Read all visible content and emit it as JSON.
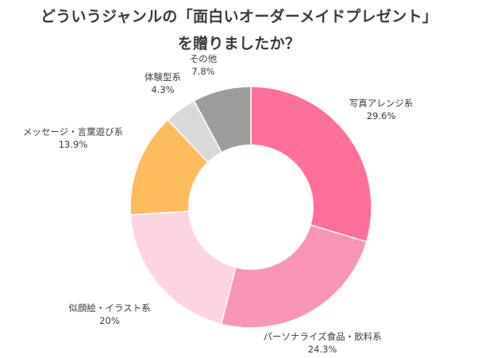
{
  "title": {
    "line1": "どういうジャンルの「面白いオーダーメイドプレゼント」",
    "line2": "を贈りましたか？"
  },
  "chart_data": {
    "type": "pie",
    "variant": "donut",
    "title": "どういうジャンルの「面白いオーダーメイドプレゼント」を贈りましたか？",
    "start": "12 o'clock",
    "direction": "clockwise",
    "slices": [
      {
        "name": "写真アレンジ系",
        "value": 29.6,
        "value_label": "29.6%",
        "color": "#ff6f9a"
      },
      {
        "name": "パーソナライズ食品・飲料系",
        "value": 24.3,
        "value_label": "24.3%",
        "color": "#f895b6"
      },
      {
        "name": "似顔絵・イラスト系",
        "value": 20,
        "value_label": "20%",
        "color": "#ffd4e2"
      },
      {
        "name": "メッセージ・言葉遊び系",
        "value": 13.9,
        "value_label": "13.9%",
        "color": "#ffbb5c"
      },
      {
        "name": "体験型系",
        "value": 4.3,
        "value_label": "4.3%",
        "color": "#d9d9d9"
      },
      {
        "name": "その他",
        "value": 7.8,
        "value_label": "7.8%",
        "color": "#9c9c9c"
      }
    ]
  }
}
